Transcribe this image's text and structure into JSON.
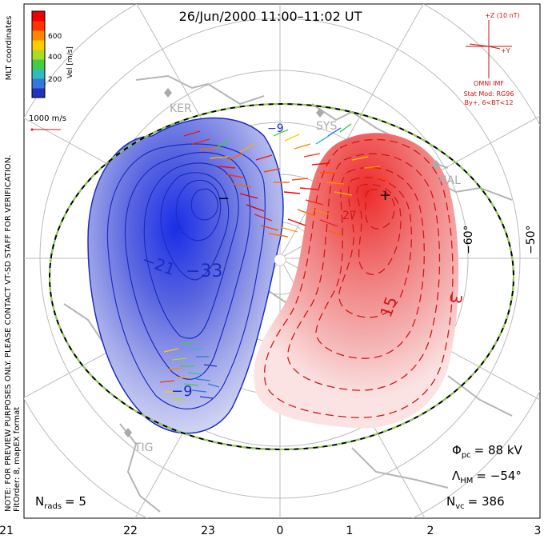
{
  "title": "26/Jun/2000 11:00–11:02 UT",
  "side_labels": {
    "note": "NOTE: FOR PREVIEW PURPOSES ONLY. PLEASE CONTACT VT-SD STAFF FOR VERIFICATION.",
    "fit": "FitOrder: 8, mapEX format",
    "coords": "MLT coordinates"
  },
  "colorbar": {
    "label": "Vel [m/s]",
    "ticks": [
      "600",
      "400",
      "200"
    ],
    "colors": [
      "#2233bb",
      "#3377dd",
      "#33bbbb",
      "#44cc44",
      "#aadd22",
      "#ffcc00",
      "#ff8800",
      "#ff3300",
      "#ee0000"
    ]
  },
  "scale_vector": {
    "label": "1000 m/s"
  },
  "imf": {
    "z_label": "+Z (10 nT)",
    "y_label": "+Y",
    "source": "OMNI IMF",
    "model_line1": "Stat Mod: RG96",
    "model_line2": "By+, 6<BT<12"
  },
  "latitude_labels": [
    "−60°",
    "−50°"
  ],
  "mlt_labels": [
    "21",
    "22",
    "23",
    "0",
    "1",
    "2",
    "3"
  ],
  "station_labels": [
    "KER",
    "SYS",
    "HAL",
    "TIG"
  ],
  "contour_labels": {
    "negative": [
      "−21",
      "−33",
      "−9",
      "−9"
    ],
    "positive": [
      "15",
      "3",
      "27"
    ],
    "min_marker": "−",
    "max_marker": "+"
  },
  "stats": {
    "phi_label": "Φ",
    "phi_sub": "pc",
    "phi_value": "= 88 kV",
    "lambda_label": "Λ",
    "lambda_sub": "HM",
    "lambda_value": "= −54°",
    "nvc_label": "N",
    "nvc_sub": "vc",
    "nvc_value": "= 386",
    "nrads_label": "N",
    "nrads_sub": "rads",
    "nrads_value": "= 5"
  }
}
